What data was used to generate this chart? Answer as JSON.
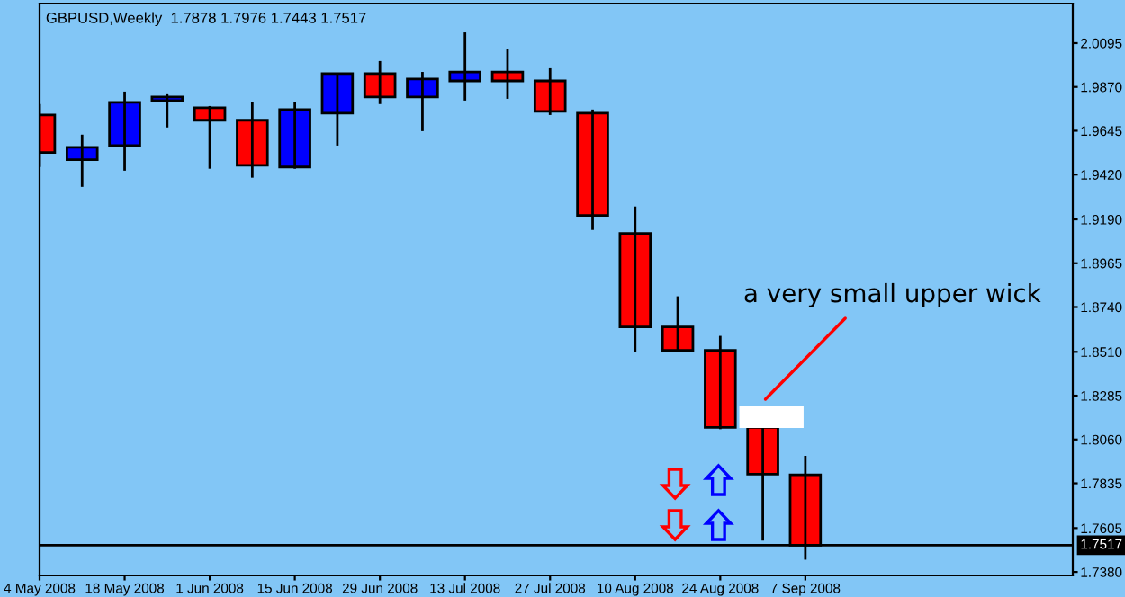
{
  "chart_data": {
    "type": "candlestick",
    "title": "GBPUSD,Weekly  1.7878 1.7976 1.7443 1.7517",
    "x": [
      "2008-05-04",
      "2008-05-11",
      "2008-05-18",
      "2008-05-25",
      "2008-06-01",
      "2008-06-08",
      "2008-06-15",
      "2008-06-22",
      "2008-06-29",
      "2008-07-06",
      "2008-07-13",
      "2008-07-20",
      "2008-07-27",
      "2008-08-03",
      "2008-08-10",
      "2008-08-17",
      "2008-08-24",
      "2008-08-31",
      "2008-09-07"
    ],
    "ohlc": [
      [
        1.9726,
        1.9782,
        1.9459,
        1.9533
      ],
      [
        1.9496,
        1.9625,
        1.9357,
        1.956
      ],
      [
        1.9569,
        1.9846,
        1.944,
        1.9791
      ],
      [
        1.98,
        1.9837,
        1.9662,
        1.9818
      ],
      [
        1.9763,
        1.9772,
        1.945,
        1.9699
      ],
      [
        1.9699,
        1.9791,
        1.9404,
        1.9468
      ],
      [
        1.9459,
        1.9791,
        1.945,
        1.9754
      ],
      [
        1.9735,
        1.9938,
        1.9569,
        1.9938
      ],
      [
        1.9938,
        2.0003,
        1.9782,
        1.9818
      ],
      [
        1.9818,
        1.9947,
        1.9643,
        1.9911
      ],
      [
        1.9901,
        2.015,
        1.98,
        1.9947
      ],
      [
        1.9947,
        2.0067,
        1.9809,
        1.9901
      ],
      [
        1.9901,
        1.9966,
        1.9726,
        1.9745
      ],
      [
        1.9735,
        1.9754,
        1.9136,
        1.921
      ],
      [
        1.9118,
        1.9256,
        1.8509,
        1.8638
      ],
      [
        1.8638,
        1.8795,
        1.8509,
        1.8518
      ],
      [
        1.8518,
        1.8592,
        1.8113,
        1.8122
      ],
      [
        1.8122,
        1.8131,
        1.7541,
        1.7882
      ],
      [
        1.7878,
        1.7976,
        1.7443,
        1.7517
      ]
    ],
    "colors": [
      "#ff0000",
      "#0000ff",
      "#0000ff",
      "#0000ff",
      "#ff0000",
      "#ff0000",
      "#0000ff",
      "#0000ff",
      "#ff0000",
      "#0000ff",
      "#0000ff",
      "#ff0000",
      "#ff0000",
      "#ff0000",
      "#ff0000",
      "#ff0000",
      "#ff0000",
      "#ff0000",
      "#ff0000"
    ],
    "xlim": [
      "2008-05-04",
      "2008-10-21"
    ],
    "xticks": [
      {
        "value": "2008-05-04",
        "label": "4 May 2008"
      },
      {
        "value": "2008-05-18",
        "label": "18 May 2008"
      },
      {
        "value": "2008-06-01",
        "label": "1 Jun 2008"
      },
      {
        "value": "2008-06-15",
        "label": "15 Jun 2008"
      },
      {
        "value": "2008-06-29",
        "label": "29 Jun 2008"
      },
      {
        "value": "2008-07-13",
        "label": "13 Jul 2008"
      },
      {
        "value": "2008-07-27",
        "label": "27 Jul 2008"
      },
      {
        "value": "2008-08-10",
        "label": "10 Aug 2008"
      },
      {
        "value": "2008-08-24",
        "label": "24 Aug 2008"
      },
      {
        "value": "2008-09-07",
        "label": "7 Sep 2008"
      }
    ],
    "ylim": [
      1.7362,
      2.0298
    ],
    "yticks": [
      2.0095,
      {
        "value": 1.987,
        "label": "1.9870"
      },
      1.9645,
      {
        "value": 1.942,
        "label": "1.9420"
      },
      {
        "value": 1.919,
        "label": "1.9190"
      },
      1.8965,
      {
        "value": 1.874,
        "label": "1.8740"
      },
      {
        "value": 1.851,
        "label": "1.8510"
      },
      1.8285,
      {
        "value": 1.806,
        "label": "1.8060"
      },
      1.7835,
      1.7605,
      {
        "value": 1.738,
        "label": "1.7380"
      }
    ],
    "ref_lines": [
      {
        "axis": "y",
        "value": 1.7517,
        "label": "1.7517",
        "color": "#000000"
      }
    ],
    "annotations": [
      "a very small upper wick"
    ],
    "grid": false
  }
}
